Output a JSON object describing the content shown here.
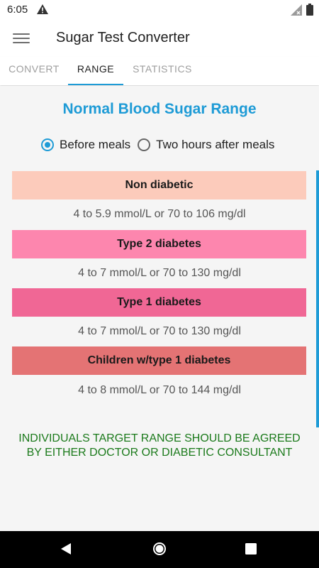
{
  "status_bar": {
    "time": "6:05"
  },
  "app_bar": {
    "title": "Sugar Test Converter"
  },
  "tabs": [
    {
      "label": "CONVERT",
      "active": false
    },
    {
      "label": "RANGE",
      "active": true
    },
    {
      "label": "STATISTICS",
      "active": false
    }
  ],
  "main": {
    "title": "Normal Blood Sugar Range",
    "radio_options": [
      {
        "label": "Before meals",
        "checked": true
      },
      {
        "label": "Two hours after meals",
        "checked": false
      }
    ],
    "ranges": [
      {
        "category": "Non diabetic",
        "range": "4 to 5.9 mmol/L or 70 to 106 mg/dl",
        "color": "#fccbbb"
      },
      {
        "category": "Type 2 diabetes",
        "range": "4 to 7 mmol/L or 70 to 130 mg/dl",
        "color": "#fd86ae"
      },
      {
        "category": "Type 1 diabetes",
        "range": "4 to 7 mmol/L or 70 to 130 mg/dl",
        "color": "#f06795"
      },
      {
        "category": "Children w/type 1 diabetes",
        "range": "4 to 8 mmol/L or 70 to 144 mg/dl",
        "color": "#e47374"
      }
    ],
    "note_lines": [
      "INDIVIDUALS TARGET RANGE SHOULD BE AGREED",
      "BY EITHER DOCTOR OR DIABETIC CONSULTANT"
    ]
  },
  "icons": {
    "warning": "warning-icon",
    "signal": "signal-icon",
    "battery": "battery-icon",
    "menu": "menu-icon",
    "back": "back-icon",
    "home": "home-icon",
    "recents": "recents-icon"
  },
  "colors": {
    "accent": "#1e9bd6",
    "note": "#1b7a1b"
  }
}
